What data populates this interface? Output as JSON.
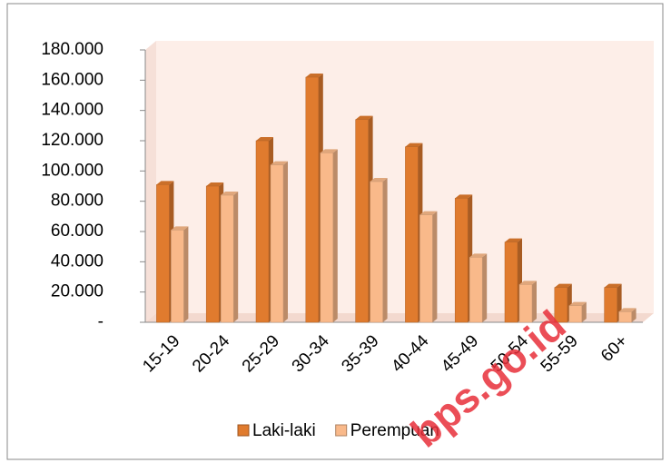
{
  "chart_data": {
    "type": "bar",
    "categories": [
      "15-19",
      "20-24",
      "25-29",
      "30-34",
      "35-39",
      "40-44",
      "45-49",
      "50-54",
      "55-59",
      "60+"
    ],
    "series": [
      {
        "name": "Laki-laki",
        "color": "#e07b2e",
        "values": [
          91000,
          90000,
          120000,
          162000,
          134000,
          116000,
          82000,
          53000,
          23000,
          23000
        ]
      },
      {
        "name": "Perempuan",
        "color": "#f9b98a",
        "values": [
          61000,
          84000,
          104000,
          112000,
          93000,
          71000,
          43000,
          25000,
          11000,
          7000
        ]
      }
    ],
    "ylim": [
      0,
      180000
    ],
    "yticks": [
      {
        "value": 0,
        "label": "-"
      },
      {
        "value": 20000,
        "label": "20.000"
      },
      {
        "value": 40000,
        "label": "40.000"
      },
      {
        "value": 60000,
        "label": "60.000"
      },
      {
        "value": 80000,
        "label": "80.000"
      },
      {
        "value": 100000,
        "label": "100.000"
      },
      {
        "value": 120000,
        "label": "120.000"
      },
      {
        "value": 140000,
        "label": "140.000"
      },
      {
        "value": 160000,
        "label": "160.000"
      },
      {
        "value": 180000,
        "label": "180.000"
      }
    ],
    "legend": "bottom",
    "watermark": "bps.go.id"
  }
}
